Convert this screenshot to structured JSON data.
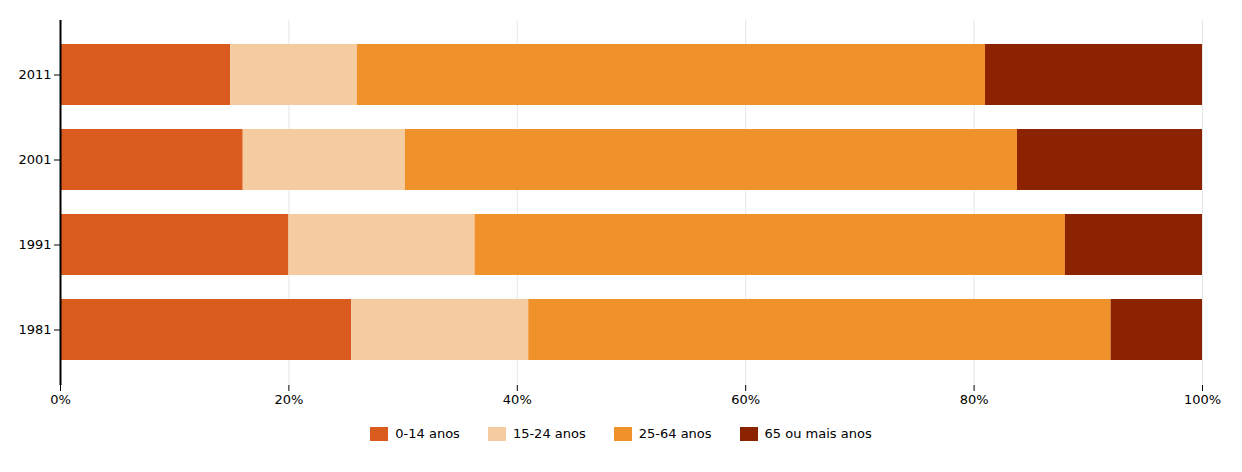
{
  "chart_data": {
    "type": "bar",
    "orientation": "horizontal",
    "stacked": true,
    "categories": [
      "1981",
      "1991",
      "2001",
      "2011"
    ],
    "series": [
      {
        "name": "0-14 anos",
        "color": "#D95B1E",
        "values": [
          25.5,
          20.0,
          16.0,
          14.9
        ]
      },
      {
        "name": "15-24 anos",
        "color": "#F5CBA0",
        "values": [
          15.5,
          16.3,
          14.2,
          11.1
        ]
      },
      {
        "name": "25-64 anos",
        "color": "#F0922B",
        "values": [
          51.0,
          51.7,
          53.6,
          55.0
        ]
      },
      {
        "name": "65 ou mais anos",
        "color": "#8B2200",
        "values": [
          8.0,
          12.0,
          16.2,
          19.0
        ]
      }
    ],
    "xlim": [
      0,
      100
    ],
    "xticks": [
      {
        "value": 0,
        "label": "0%"
      },
      {
        "value": 20,
        "label": "20%"
      },
      {
        "value": 40,
        "label": "40%"
      },
      {
        "value": 60,
        "label": "60%"
      },
      {
        "value": 80,
        "label": "80%"
      },
      {
        "value": 100,
        "label": "100%"
      }
    ],
    "grid": true,
    "legend": "bottom"
  }
}
